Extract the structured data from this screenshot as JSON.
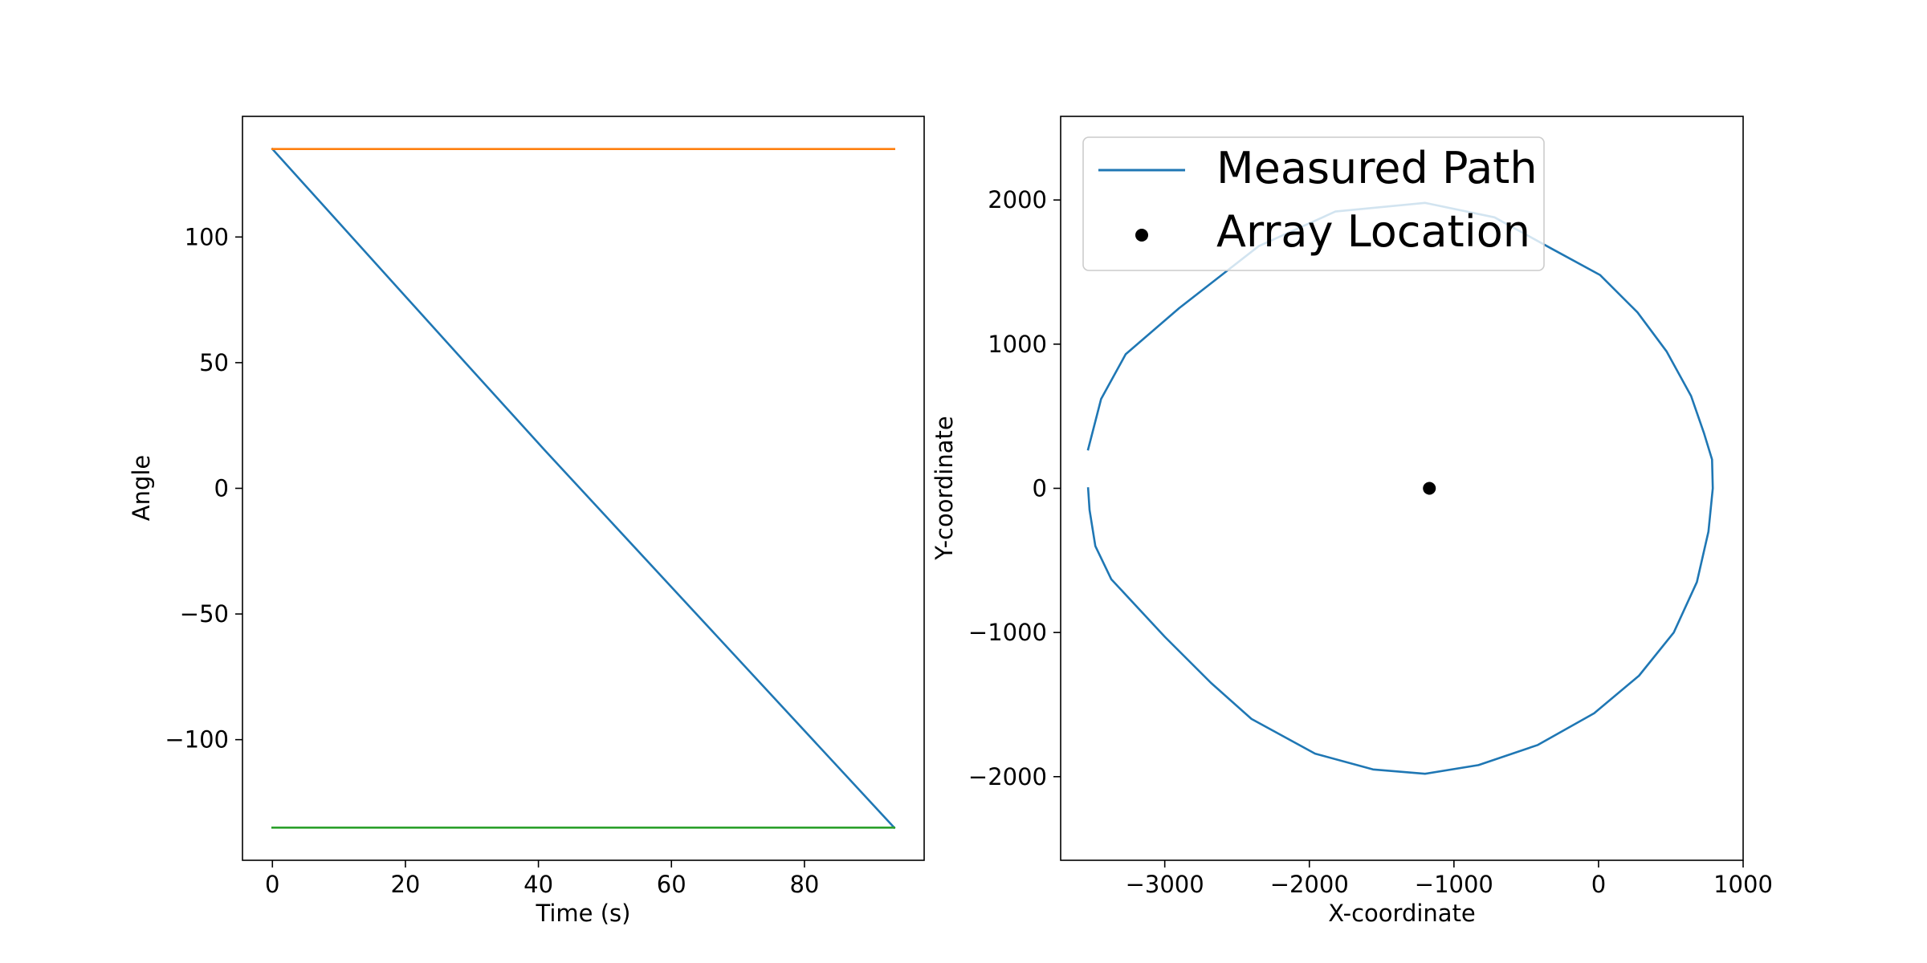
{
  "chart_data": [
    {
      "type": "line",
      "title": "",
      "xlabel": "Time (s)",
      "ylabel": "Angle",
      "xlim": [
        -4.5,
        98
      ],
      "ylim": [
        -148,
        148
      ],
      "grid": false,
      "xticks": [
        0,
        20,
        40,
        60,
        80
      ],
      "yticks": [
        -100,
        -50,
        0,
        50,
        100
      ],
      "xtick_labels": [
        "0",
        "20",
        "40",
        "60",
        "80"
      ],
      "ytick_labels": [
        "−100",
        "−50",
        "0",
        "50",
        "100"
      ],
      "series": [
        {
          "color": "#1f77b4",
          "x": [
            0,
            29,
            41,
            93.5
          ],
          "y": [
            135,
            50,
            15,
            -135
          ]
        },
        {
          "color": "#ff7f0e",
          "x": [
            0,
            93.5
          ],
          "y": [
            135,
            135
          ]
        },
        {
          "color": "#2ca02c",
          "x": [
            0,
            93.5
          ],
          "y": [
            -135,
            -135
          ]
        }
      ]
    },
    {
      "type": "line",
      "title": "",
      "xlabel": "X-coordinate",
      "ylabel": "Y-coordinate",
      "xlim": [
        -3720,
        1000
      ],
      "ylim": [
        -2580,
        2580
      ],
      "grid": false,
      "legend_position": "upper-left",
      "xticks": [
        -3000,
        -2000,
        -1000,
        0,
        1000
      ],
      "yticks": [
        -2000,
        -1000,
        0,
        1000,
        2000
      ],
      "xtick_labels": [
        "−3000",
        "−2000",
        "−1000",
        "0",
        "1000"
      ],
      "ytick_labels": [
        "−2000",
        "−1000",
        "0",
        "1000",
        "2000"
      ],
      "series": [
        {
          "name": "Measured Path",
          "color": "#1f77b4",
          "x": [
            -3530,
            -3440,
            -3270,
            -2900,
            -2350,
            -1820,
            -1200,
            -720,
            -320,
            10,
            270,
            470,
            640,
            730,
            785,
            790,
            760,
            680,
            520,
            280,
            -30,
            -420,
            -830,
            -1200,
            -1560,
            -1960,
            -2400,
            -2680,
            -3000,
            -3370,
            -3480,
            -3520,
            -3530
          ],
          "y": [
            270,
            620,
            930,
            1250,
            1680,
            1920,
            1980,
            1880,
            1660,
            1480,
            1220,
            950,
            640,
            380,
            200,
            0,
            -300,
            -650,
            -1000,
            -1300,
            -1560,
            -1780,
            -1920,
            -1980,
            -1950,
            -1840,
            -1600,
            -1350,
            -1030,
            -630,
            -400,
            -150,
            0
          ]
        },
        {
          "name": "Array Location",
          "color": "#000000",
          "marker": "dot",
          "x": [
            -1170
          ],
          "y": [
            0
          ]
        }
      ]
    }
  ]
}
